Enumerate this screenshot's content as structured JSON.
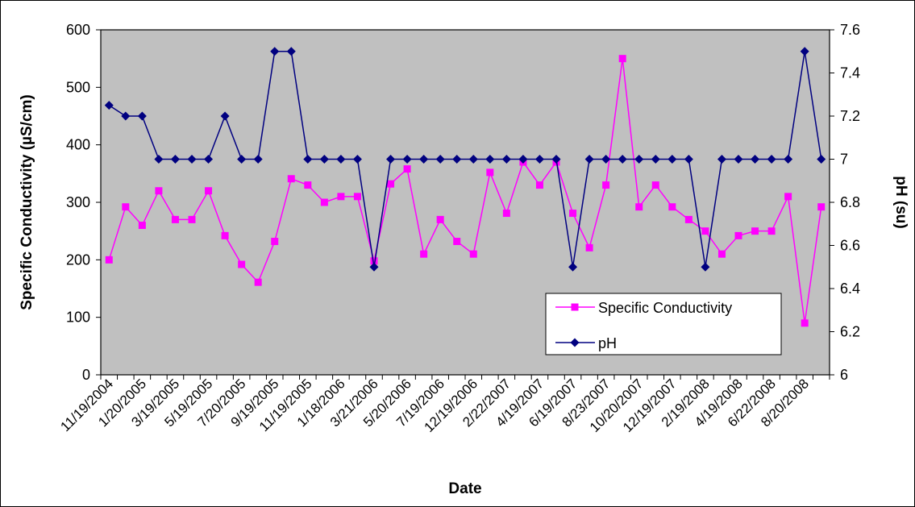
{
  "chart_data": {
    "type": "line",
    "title": "",
    "xlabel": "Date",
    "ylabel_left": "Specific Conductivity (µS/cm)",
    "ylabel_right": "pH (su)",
    "ylim_left": [
      0,
      600
    ],
    "yticks_left": [
      "0",
      "100",
      "200",
      "300",
      "400",
      "500",
      "600"
    ],
    "ylim_right": [
      6,
      7.6
    ],
    "yticks_right": [
      "6",
      "6.2",
      "6.4",
      "6.6",
      "6.8",
      "7",
      "7.2",
      "7.4",
      "7.6"
    ],
    "x_tick_labels": [
      "11/19/2004",
      "1/20/2005",
      "3/19/2005",
      "5/19/2005",
      "7/20/2005",
      "9/19/2005",
      "11/19/2005",
      "1/18/2006",
      "3/21/2006",
      "5/20/2006",
      "7/19/2006",
      "12/19/2006",
      "2/22/2007",
      "4/19/2007",
      "6/19/2007",
      "8/23/2007",
      "10/20/2007",
      "12/19/2007",
      "2/19/2008",
      "4/19/2008",
      "6/22/2008",
      "8/20/2008"
    ],
    "point_count": 44,
    "grid": false,
    "plot_background": "#c0c0c0",
    "legend_position": "lower-right inside",
    "series": [
      {
        "name": "Specific Conductivity",
        "axis": "left",
        "color": "#ff00ff",
        "marker": "square",
        "values": [
          200,
          292,
          260,
          320,
          270,
          270,
          320,
          242,
          192,
          161,
          232,
          341,
          330,
          300,
          310,
          310,
          198,
          332,
          358,
          210,
          270,
          232,
          210,
          352,
          281,
          370,
          330,
          370,
          281,
          221,
          330,
          550,
          292,
          330,
          292,
          270,
          250,
          210,
          242,
          250,
          250,
          310,
          90,
          292
        ]
      },
      {
        "name": "pH",
        "axis": "right",
        "color": "#000080",
        "marker": "diamond",
        "values": [
          7.25,
          7.2,
          7.2,
          7.0,
          7.0,
          7.0,
          7.0,
          7.2,
          7.0,
          7.0,
          7.5,
          7.5,
          7.0,
          7.0,
          7.0,
          7.0,
          6.5,
          7.0,
          7.0,
          7.0,
          7.0,
          7.0,
          7.0,
          7.0,
          7.0,
          7.0,
          7.0,
          7.0,
          6.5,
          7.0,
          7.0,
          7.0,
          7.0,
          7.0,
          7.0,
          7.0,
          6.5,
          7.0,
          7.0,
          7.0,
          7.0,
          7.0,
          7.5,
          7.0
        ]
      }
    ]
  }
}
